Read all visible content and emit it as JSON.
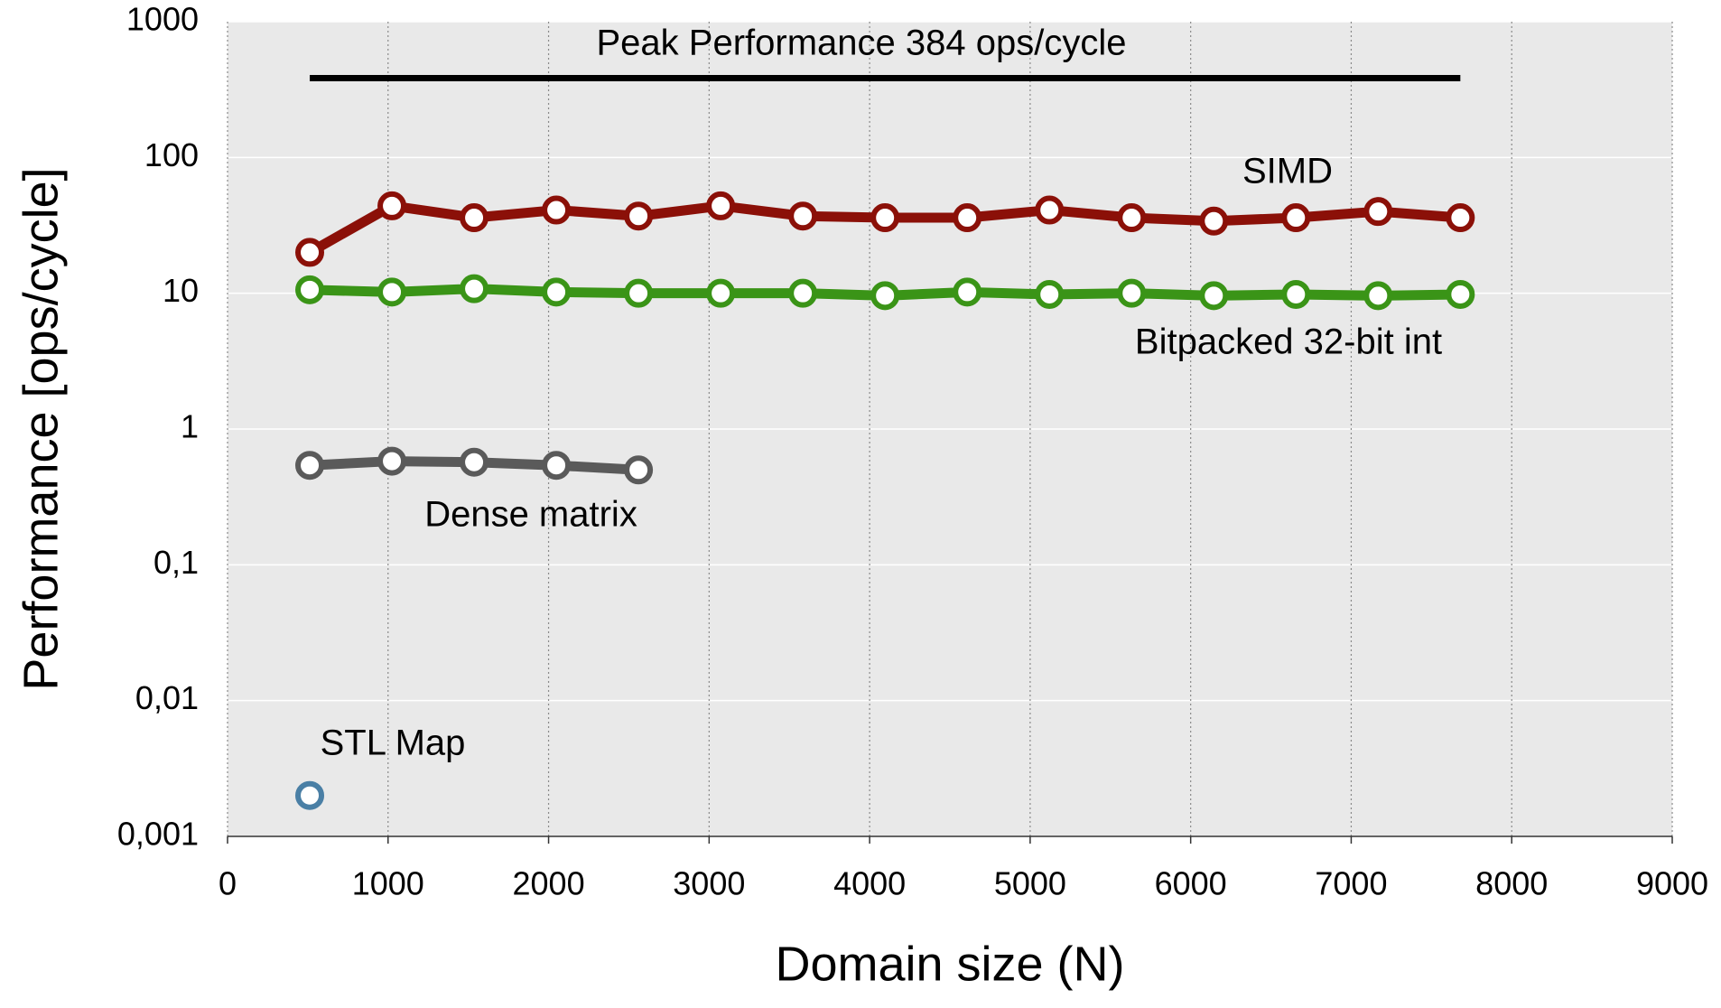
{
  "chart_data": {
    "type": "line",
    "x_label": "Domain size (N)",
    "y_label": "Performance [ops/cycle]",
    "log_y": true,
    "grid": true,
    "xlim": [
      0,
      9000
    ],
    "xticks": [
      0,
      1000,
      2000,
      3000,
      4000,
      5000,
      6000,
      7000,
      8000,
      9000
    ],
    "ylim": [
      0.001,
      1000
    ],
    "yticks": [
      {
        "value": 0.001,
        "label": "0,001"
      },
      {
        "value": 0.01,
        "label": "0,01"
      },
      {
        "value": 0.1,
        "label": "0,1"
      },
      1,
      10,
      100,
      1000
    ],
    "peak": {
      "label": "Peak Performance 384 ops/cycle",
      "value": 384,
      "x": [
        512,
        7680
      ],
      "color": "#000000"
    },
    "x": [
      512,
      1024,
      1536,
      2048,
      2560,
      3072,
      3584,
      4096,
      4608,
      5120,
      5632,
      6144,
      6656,
      7168,
      7680
    ],
    "series": [
      {
        "name": "SIMD",
        "color": "#8b1008",
        "values": [
          20,
          44,
          36,
          41,
          37,
          44,
          37,
          36,
          36,
          41,
          36,
          34,
          36,
          40,
          36
        ]
      },
      {
        "name": "Bitpacked 32-bit int",
        "color": "#3a9417",
        "values": [
          10.6,
          10.2,
          10.8,
          10.2,
          10,
          10,
          10,
          9.6,
          10.2,
          9.8,
          10,
          9.6,
          9.8,
          9.6,
          9.8
        ]
      },
      {
        "name": "Dense matrix",
        "color": "#5a5a5a",
        "values": [
          0.54,
          0.58,
          0.57,
          0.54,
          0.5,
          null,
          null,
          null,
          null,
          null,
          null,
          null,
          null,
          null,
          null
        ]
      },
      {
        "name": "STL Map",
        "color": "#4a7fa5",
        "values": [
          0.002,
          null,
          null,
          null,
          null,
          null,
          null,
          null,
          null,
          null,
          null,
          null,
          null,
          null,
          null
        ]
      }
    ]
  }
}
